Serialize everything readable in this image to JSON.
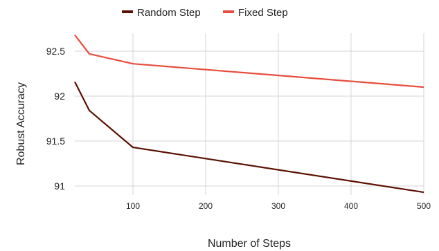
{
  "chart_data": {
    "type": "line",
    "xlabel": "Number of Steps",
    "ylabel": "Robust Accuracy",
    "xlim": [
      20,
      500
    ],
    "ylim": [
      90.9,
      92.7
    ],
    "xticks": [
      100,
      200,
      300,
      400,
      500
    ],
    "xtick_labels": [
      "100",
      "200",
      "300",
      "400",
      "500"
    ],
    "yticks": [
      91,
      91.5,
      92,
      92.5
    ],
    "ytick_labels": [
      "91",
      "91.5",
      "92",
      "92.5"
    ],
    "grid": true,
    "legend_position": "top-center",
    "series": [
      {
        "name": "Random Step",
        "color": "#5a0f00",
        "x": [
          20,
          40,
          100,
          500
        ],
        "y": [
          92.16,
          91.84,
          91.43,
          90.93
        ]
      },
      {
        "name": "Fixed Step",
        "color": "#e84c3d",
        "x": [
          20,
          40,
          100,
          500
        ],
        "y": [
          92.68,
          92.47,
          92.36,
          92.1
        ]
      }
    ]
  }
}
